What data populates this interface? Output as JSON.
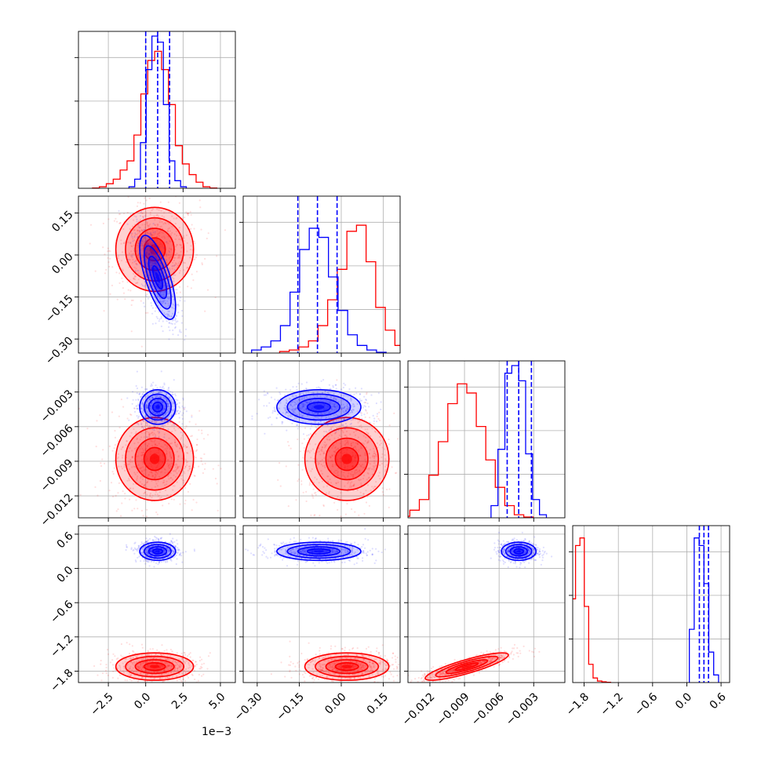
{
  "chart_data": {
    "type": "corner",
    "grid": true,
    "series_colors": {
      "red": "#ff0000",
      "blue": "#0000ff"
    },
    "x_offset_label": "1e−3",
    "params": [
      {
        "ticks": [
          -2.5,
          0.0,
          2.5,
          5.0
        ],
        "tick_labels": [
          "−2.5",
          "0.0",
          "2.5",
          "5.0"
        ],
        "range": [
          -4.5,
          6.0
        ],
        "scale": "1e-3"
      },
      {
        "ticks": [
          -0.3,
          -0.15,
          0.0,
          0.15
        ],
        "tick_labels": [
          "−0.30",
          "−0.15",
          "0.00",
          "0.15"
        ],
        "range": [
          -0.35,
          0.21
        ]
      },
      {
        "ticks": [
          -0.012,
          -0.009,
          -0.006,
          -0.003
        ],
        "tick_labels": [
          "−0.012",
          "−0.009",
          "−0.006",
          "−0.003"
        ],
        "range": [
          -0.0139,
          -0.0003
        ]
      },
      {
        "ticks": [
          -1.8,
          -1.2,
          -0.6,
          0.0,
          0.6
        ],
        "tick_labels": [
          "−1.8",
          "−1.2",
          "−0.6",
          "0.0",
          "0.6"
        ],
        "range": [
          -2.0,
          0.75
        ]
      }
    ],
    "series": [
      {
        "color": "red",
        "mean": [
          0.6,
          0.02,
          -0.0088,
          -1.72
        ],
        "sd": [
          1.3,
          0.075,
          0.0018,
          0.12
        ],
        "corr": {
          "2-3": 0.85
        },
        "hist": [
          [
            0.002,
            0.01,
            0.03,
            0.06,
            0.12,
            0.18,
            0.35,
            0.62,
            0.84,
            0.9,
            0.78,
            0.55,
            0.28,
            0.16,
            0.09,
            0.04,
            0.01,
            0.002
          ],
          [
            0.01,
            0.02,
            0.04,
            0.08,
            0.18,
            0.35,
            0.55,
            0.8,
            0.84,
            0.6,
            0.3,
            0.15,
            0.05,
            0.02
          ],
          [
            0.01,
            0.05,
            0.12,
            0.28,
            0.5,
            0.75,
            0.88,
            0.82,
            0.6,
            0.38,
            0.2,
            0.08,
            0.02,
            0.005
          ],
          [
            0.1,
            0.55,
            0.9,
            0.95,
            0.5,
            0.12,
            0.03,
            0.01,
            0.005,
            0.002
          ]
        ]
      },
      {
        "color": "blue",
        "mean": [
          0.8,
          -0.08,
          -0.0043,
          0.3
        ],
        "sd": [
          0.6,
          0.075,
          0.00075,
          0.08
        ],
        "corr": {
          "0-1": -0.7
        },
        "hist": [
          [
            0.01,
            0.06,
            0.3,
            0.78,
            1.0,
            0.96,
            0.55,
            0.18,
            0.05,
            0.01
          ],
          [
            0.02,
            0.04,
            0.08,
            0.18,
            0.4,
            0.68,
            0.82,
            0.76,
            0.5,
            0.28,
            0.12,
            0.05,
            0.02,
            0.005
          ],
          [
            0.08,
            0.45,
            0.95,
            1.0,
            0.9,
            0.42,
            0.12,
            0.02
          ],
          [
            0.35,
            0.95,
            0.9,
            0.65,
            0.2,
            0.05
          ]
        ],
        "quantiles": [
          [
            0.0,
            0.8,
            1.6
          ],
          [
            -0.155,
            -0.085,
            -0.015
          ],
          [
            -0.0053,
            -0.0043,
            -0.0032
          ],
          [
            0.22,
            0.3,
            0.38
          ]
        ]
      }
    ]
  }
}
